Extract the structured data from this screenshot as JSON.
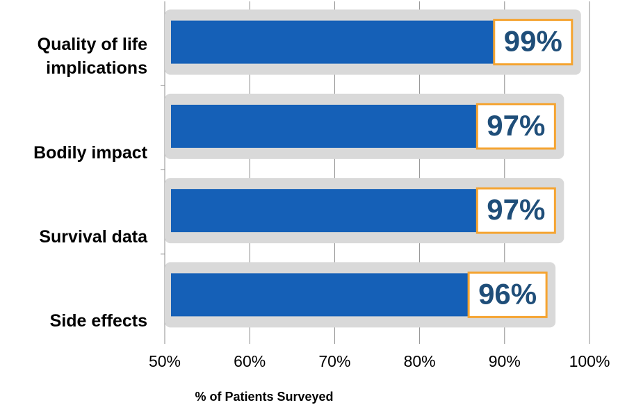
{
  "chart_data": {
    "type": "bar",
    "orientation": "horizontal",
    "categories": [
      "Quality of life implications",
      "Bodily impact",
      "Survival data",
      "Side effects"
    ],
    "values": [
      99,
      97,
      97,
      96
    ],
    "value_labels": [
      "99%",
      "97%",
      "97%",
      "96%"
    ],
    "color": "#1560b7",
    "xlim": [
      50,
      100
    ],
    "xticks": [
      {
        "value": 50,
        "label": "50%"
      },
      {
        "value": 60,
        "label": "60%"
      },
      {
        "value": 70,
        "label": "70%"
      },
      {
        "value": 80,
        "label": "80%"
      },
      {
        "value": 90,
        "label": "90%"
      },
      {
        "value": 100,
        "label": "100%"
      }
    ],
    "xlabel": "% of Patients Surveyed",
    "grid": true
  }
}
